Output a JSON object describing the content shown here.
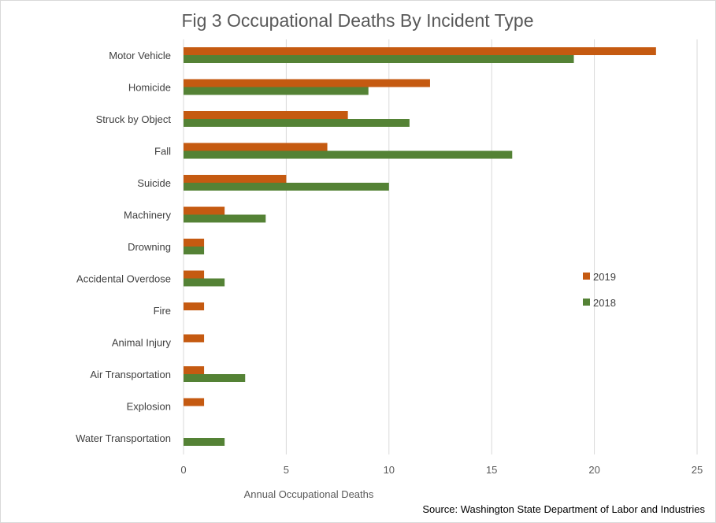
{
  "chart_data": {
    "type": "bar",
    "orientation": "horizontal",
    "title": "Fig 3 Occupational Deaths By Incident Type",
    "xlabel": "Annual Occupational Deaths",
    "ylabel": "",
    "source": "Source: Washington State Department of Labor and Industries",
    "xlim": [
      0,
      25
    ],
    "xticks": [
      0,
      5,
      10,
      15,
      20,
      25
    ],
    "grid": true,
    "legend_position": "right",
    "categories": [
      "Motor Vehicle",
      "Homicide",
      "Struck by Object",
      "Fall",
      "Suicide",
      "Machinery",
      "Drowning",
      "Accidental Overdose",
      "Fire",
      "Animal Injury",
      "Air Transportation",
      "Explosion",
      "Water Transportation"
    ],
    "series": [
      {
        "name": "2019",
        "color": "#c55a11",
        "values": [
          23,
          12,
          8,
          7,
          5,
          2,
          1,
          1,
          1,
          1,
          1,
          1,
          0
        ]
      },
      {
        "name": "2018",
        "color": "#548235",
        "values": [
          19,
          9,
          11,
          16,
          10,
          4,
          1,
          2,
          0,
          0,
          3,
          0,
          2
        ]
      }
    ]
  }
}
